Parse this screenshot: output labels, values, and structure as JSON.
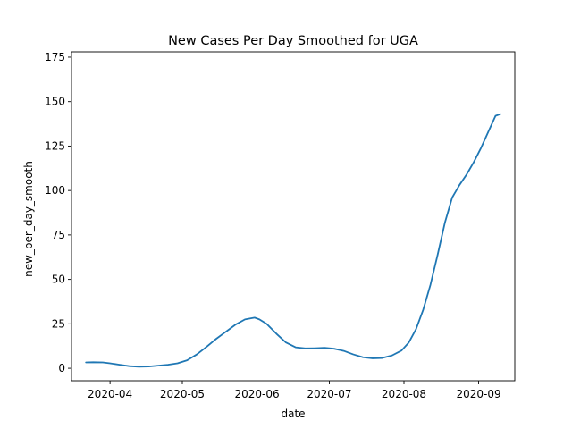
{
  "chart_data": {
    "type": "line",
    "title": "New Cases Per Day Smoothed for UGA",
    "xlabel": "date",
    "ylabel": "new_per_day_smooth",
    "xlim": [
      "2020-03-16",
      "2020-09-16"
    ],
    "ylim": [
      -7,
      178
    ],
    "x_ticks": [
      "2020-04",
      "2020-05",
      "2020-06",
      "2020-07",
      "2020-08",
      "2020-09"
    ],
    "y_ticks": [
      0,
      25,
      50,
      75,
      100,
      125,
      150,
      175
    ],
    "grid": false,
    "line_color": "#1f77b4",
    "series": [
      {
        "x": [
          "2020-03-22",
          "2020-03-25",
          "2020-03-29",
          "2020-04-01",
          "2020-04-05",
          "2020-04-09",
          "2020-04-13",
          "2020-04-17",
          "2020-04-21",
          "2020-04-25",
          "2020-04-29",
          "2020-05-03",
          "2020-05-07",
          "2020-05-11",
          "2020-05-15",
          "2020-05-19",
          "2020-05-23",
          "2020-05-27",
          "2020-05-31",
          "2020-06-02",
          "2020-06-05",
          "2020-06-09",
          "2020-06-13",
          "2020-06-17",
          "2020-06-21",
          "2020-06-25",
          "2020-06-29",
          "2020-07-03",
          "2020-07-07",
          "2020-07-11",
          "2020-07-15",
          "2020-07-19",
          "2020-07-23",
          "2020-07-27",
          "2020-07-31",
          "2020-08-03",
          "2020-08-06",
          "2020-08-09",
          "2020-08-12",
          "2020-08-15",
          "2020-08-18",
          "2020-08-21",
          "2020-08-24",
          "2020-08-27",
          "2020-08-30",
          "2020-09-02",
          "2020-09-05",
          "2020-09-08",
          "2020-09-10"
        ],
        "values": [
          3.3,
          3.4,
          3.3,
          2.8,
          2.0,
          1.2,
          0.9,
          1.0,
          1.5,
          2.0,
          2.8,
          4.5,
          7.8,
          12.0,
          16.5,
          20.5,
          24.5,
          27.5,
          28.5,
          27.5,
          25.0,
          19.5,
          14.5,
          11.8,
          11.2,
          11.3,
          11.5,
          11.0,
          9.8,
          7.8,
          6.2,
          5.6,
          5.8,
          7.2,
          10.0,
          14.5,
          22.0,
          33.0,
          47.0,
          64.0,
          82.0,
          96.0,
          103.0,
          109.0,
          116.0,
          124.0,
          133.0,
          142.0,
          143.0
        ]
      }
    ]
  }
}
